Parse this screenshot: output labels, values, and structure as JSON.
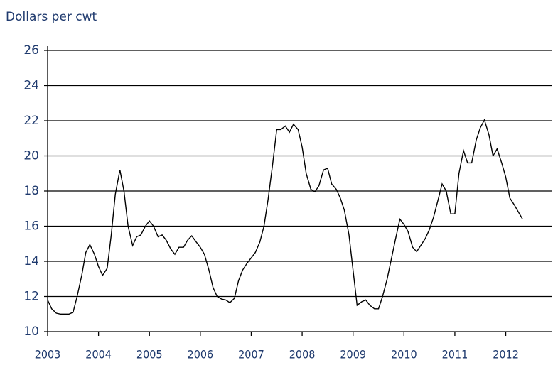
{
  "chart_data": {
    "type": "line",
    "ylabel": "Dollars per cwt",
    "x": [
      2003.0,
      2003.08,
      2003.17,
      2003.25,
      2003.33,
      2003.42,
      2003.5,
      2003.58,
      2003.67,
      2003.75,
      2003.83,
      2003.92,
      2004.0,
      2004.08,
      2004.17,
      2004.25,
      2004.33,
      2004.42,
      2004.5,
      2004.58,
      2004.67,
      2004.75,
      2004.83,
      2004.92,
      2005.0,
      2005.08,
      2005.17,
      2005.25,
      2005.33,
      2005.42,
      2005.5,
      2005.58,
      2005.67,
      2005.75,
      2005.83,
      2005.92,
      2006.0,
      2006.08,
      2006.17,
      2006.25,
      2006.33,
      2006.42,
      2006.5,
      2006.58,
      2006.67,
      2006.75,
      2006.83,
      2006.92,
      2007.0,
      2007.08,
      2007.17,
      2007.25,
      2007.33,
      2007.42,
      2007.5,
      2007.58,
      2007.67,
      2007.75,
      2007.83,
      2007.92,
      2008.0,
      2008.08,
      2008.17,
      2008.25,
      2008.33,
      2008.42,
      2008.5,
      2008.58,
      2008.67,
      2008.75,
      2008.83,
      2008.92,
      2009.0,
      2009.08,
      2009.17,
      2009.25,
      2009.33,
      2009.42,
      2009.5,
      2009.58,
      2009.67,
      2009.75,
      2009.83,
      2009.92,
      2010.0,
      2010.08,
      2010.17,
      2010.25,
      2010.33,
      2010.42,
      2010.5,
      2010.58,
      2010.67,
      2010.75,
      2010.83,
      2010.92,
      2011.0,
      2011.08,
      2011.17,
      2011.25,
      2011.33,
      2011.42,
      2011.5,
      2011.58,
      2011.67,
      2011.75,
      2011.83,
      2011.92,
      2012.0,
      2012.08,
      2012.17,
      2012.25,
      2012.33
    ],
    "series": [
      {
        "color": "#000000",
        "values": [
          11.8,
          11.3,
          11.05,
          11.0,
          11.0,
          11.0,
          11.1,
          12.0,
          13.2,
          14.5,
          14.95,
          14.4,
          13.7,
          13.2,
          13.6,
          15.5,
          17.8,
          19.2,
          18.0,
          16.0,
          14.9,
          15.4,
          15.5,
          16.0,
          16.3,
          16.0,
          15.4,
          15.5,
          15.2,
          14.7,
          14.4,
          14.8,
          14.8,
          15.2,
          15.45,
          15.1,
          14.8,
          14.4,
          13.5,
          12.5,
          12.0,
          11.85,
          11.8,
          11.65,
          11.9,
          12.9,
          13.5,
          13.9,
          14.2,
          14.5,
          15.1,
          16.0,
          17.5,
          19.5,
          21.5,
          21.5,
          21.7,
          21.35,
          21.8,
          21.5,
          20.5,
          19.0,
          18.1,
          17.95,
          18.3,
          19.2,
          19.3,
          18.4,
          18.1,
          17.6,
          16.9,
          15.5,
          13.5,
          11.5,
          11.7,
          11.8,
          11.5,
          11.3,
          11.3,
          12.0,
          13.0,
          14.1,
          15.2,
          16.4,
          16.1,
          15.7,
          14.8,
          14.55,
          14.9,
          15.3,
          15.8,
          16.5,
          17.5,
          18.4,
          18.0,
          16.7,
          16.7,
          19.0,
          20.3,
          19.6,
          19.6,
          20.9,
          21.6,
          22.05,
          21.2,
          20.0,
          20.4,
          19.6,
          18.8,
          17.6,
          17.2,
          16.8,
          16.4
        ]
      }
    ],
    "xlim": [
      2003,
      2012.9
    ],
    "xticks": [
      2003,
      2004,
      2005,
      2006,
      2007,
      2008,
      2009,
      2010,
      2011,
      2012
    ],
    "ylim": [
      10,
      26
    ],
    "yticks": [
      10,
      12,
      14,
      16,
      18,
      20,
      22,
      24,
      26
    ],
    "grid": true
  }
}
